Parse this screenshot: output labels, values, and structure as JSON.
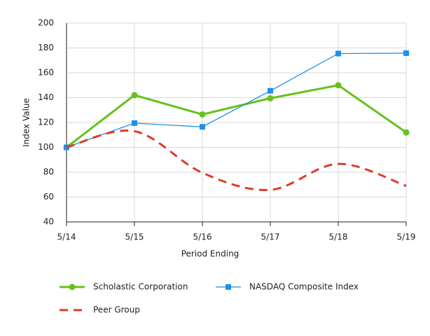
{
  "chart_data": {
    "type": "line",
    "categories": [
      "5/14",
      "5/15",
      "5/16",
      "5/17",
      "5/18",
      "5/19"
    ],
    "x_label": "Period Ending",
    "y_label": "Index Value",
    "ylim": [
      40,
      200
    ],
    "yticks": [
      40,
      60,
      80,
      100,
      120,
      140,
      160,
      180,
      200
    ],
    "grid": true,
    "series": [
      {
        "name": "Scholastic Corporation",
        "color": "#66c21a",
        "marker": "circle",
        "style": "solid",
        "values": [
          100,
          142,
          126.5,
          139.5,
          150,
          112
        ]
      },
      {
        "name": "NASDAQ Composite Index",
        "color": "#1e90e8",
        "marker": "square",
        "style": "solid",
        "values": [
          100,
          119.5,
          116.5,
          145.5,
          175.5,
          175.8
        ]
      },
      {
        "name": "Peer Group",
        "color": "#e03a2a",
        "marker": "none",
        "style": "dashed",
        "values": [
          100,
          113,
          79.5,
          65.8,
          86.7,
          69
        ]
      }
    ]
  }
}
